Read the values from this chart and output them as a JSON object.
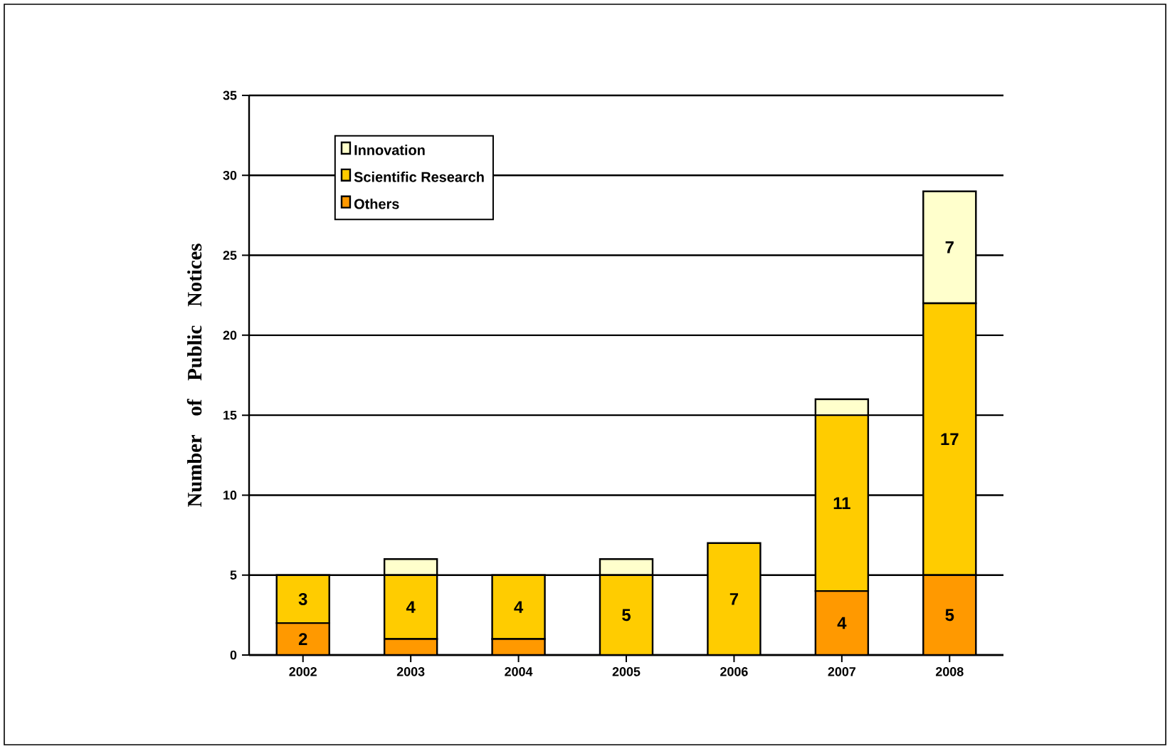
{
  "chart_data": {
    "type": "bar",
    "stacked": true,
    "ylabel": "Number of Public Notices",
    "categories": [
      "2002",
      "2003",
      "2004",
      "2005",
      "2006",
      "2007",
      "2008"
    ],
    "series": [
      {
        "name": "Others",
        "color": "#ff9900",
        "values": [
          2,
          1,
          1,
          0,
          0,
          4,
          5
        ],
        "value_labels": [
          "2",
          null,
          null,
          null,
          null,
          "4",
          "5"
        ]
      },
      {
        "name": "Scientific Research",
        "color": "#ffcc00",
        "values": [
          3,
          4,
          4,
          5,
          7,
          11,
          17
        ],
        "value_labels": [
          "3",
          "4",
          "4",
          "5",
          "7",
          "11",
          "17"
        ]
      },
      {
        "name": "Innovation",
        "color": "#ffffcc",
        "values": [
          0,
          1,
          0,
          1,
          0,
          1,
          7
        ],
        "value_labels": [
          null,
          null,
          null,
          null,
          null,
          null,
          "7"
        ]
      }
    ],
    "ylim": [
      0,
      35
    ],
    "yticks": [
      0,
      5,
      10,
      15,
      20,
      25,
      30,
      35
    ],
    "grid": "y",
    "legend": "top left"
  }
}
